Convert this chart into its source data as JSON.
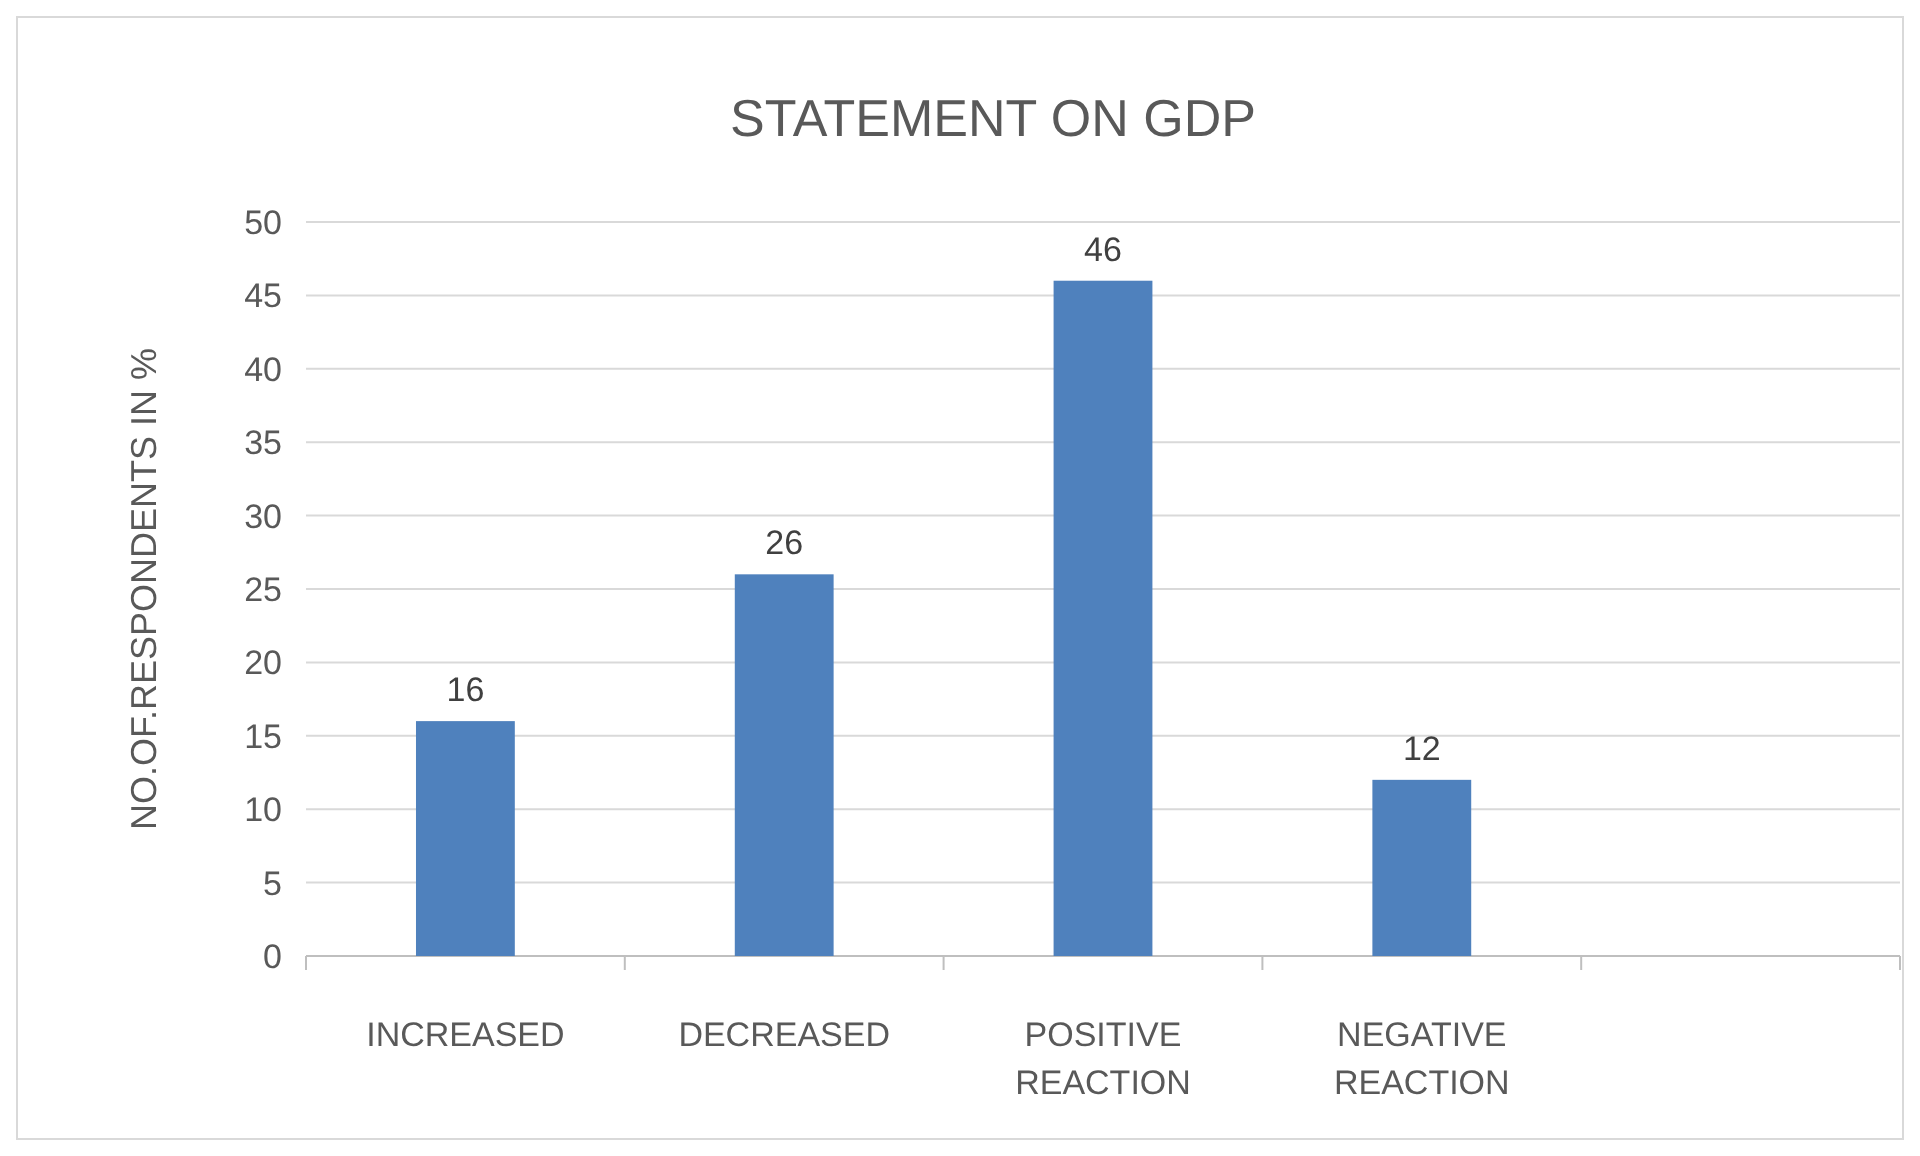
{
  "chart_data": {
    "type": "bar",
    "title": "STATEMENT ON GDP",
    "ylabel": "NO.OF.RESPONDENTS IN %",
    "categories": [
      "INCREASED",
      "DECREASED",
      "POSITIVE REACTION",
      "NEGATIVE REACTION",
      null
    ],
    "values": [
      16,
      26,
      46,
      12,
      null
    ],
    "color": "#4f81bd",
    "ylim": [
      0,
      50
    ],
    "yticks": [
      0,
      5,
      10,
      15,
      20,
      25,
      30,
      35,
      40,
      45,
      50
    ],
    "grid": "y",
    "data_labels": true
  }
}
